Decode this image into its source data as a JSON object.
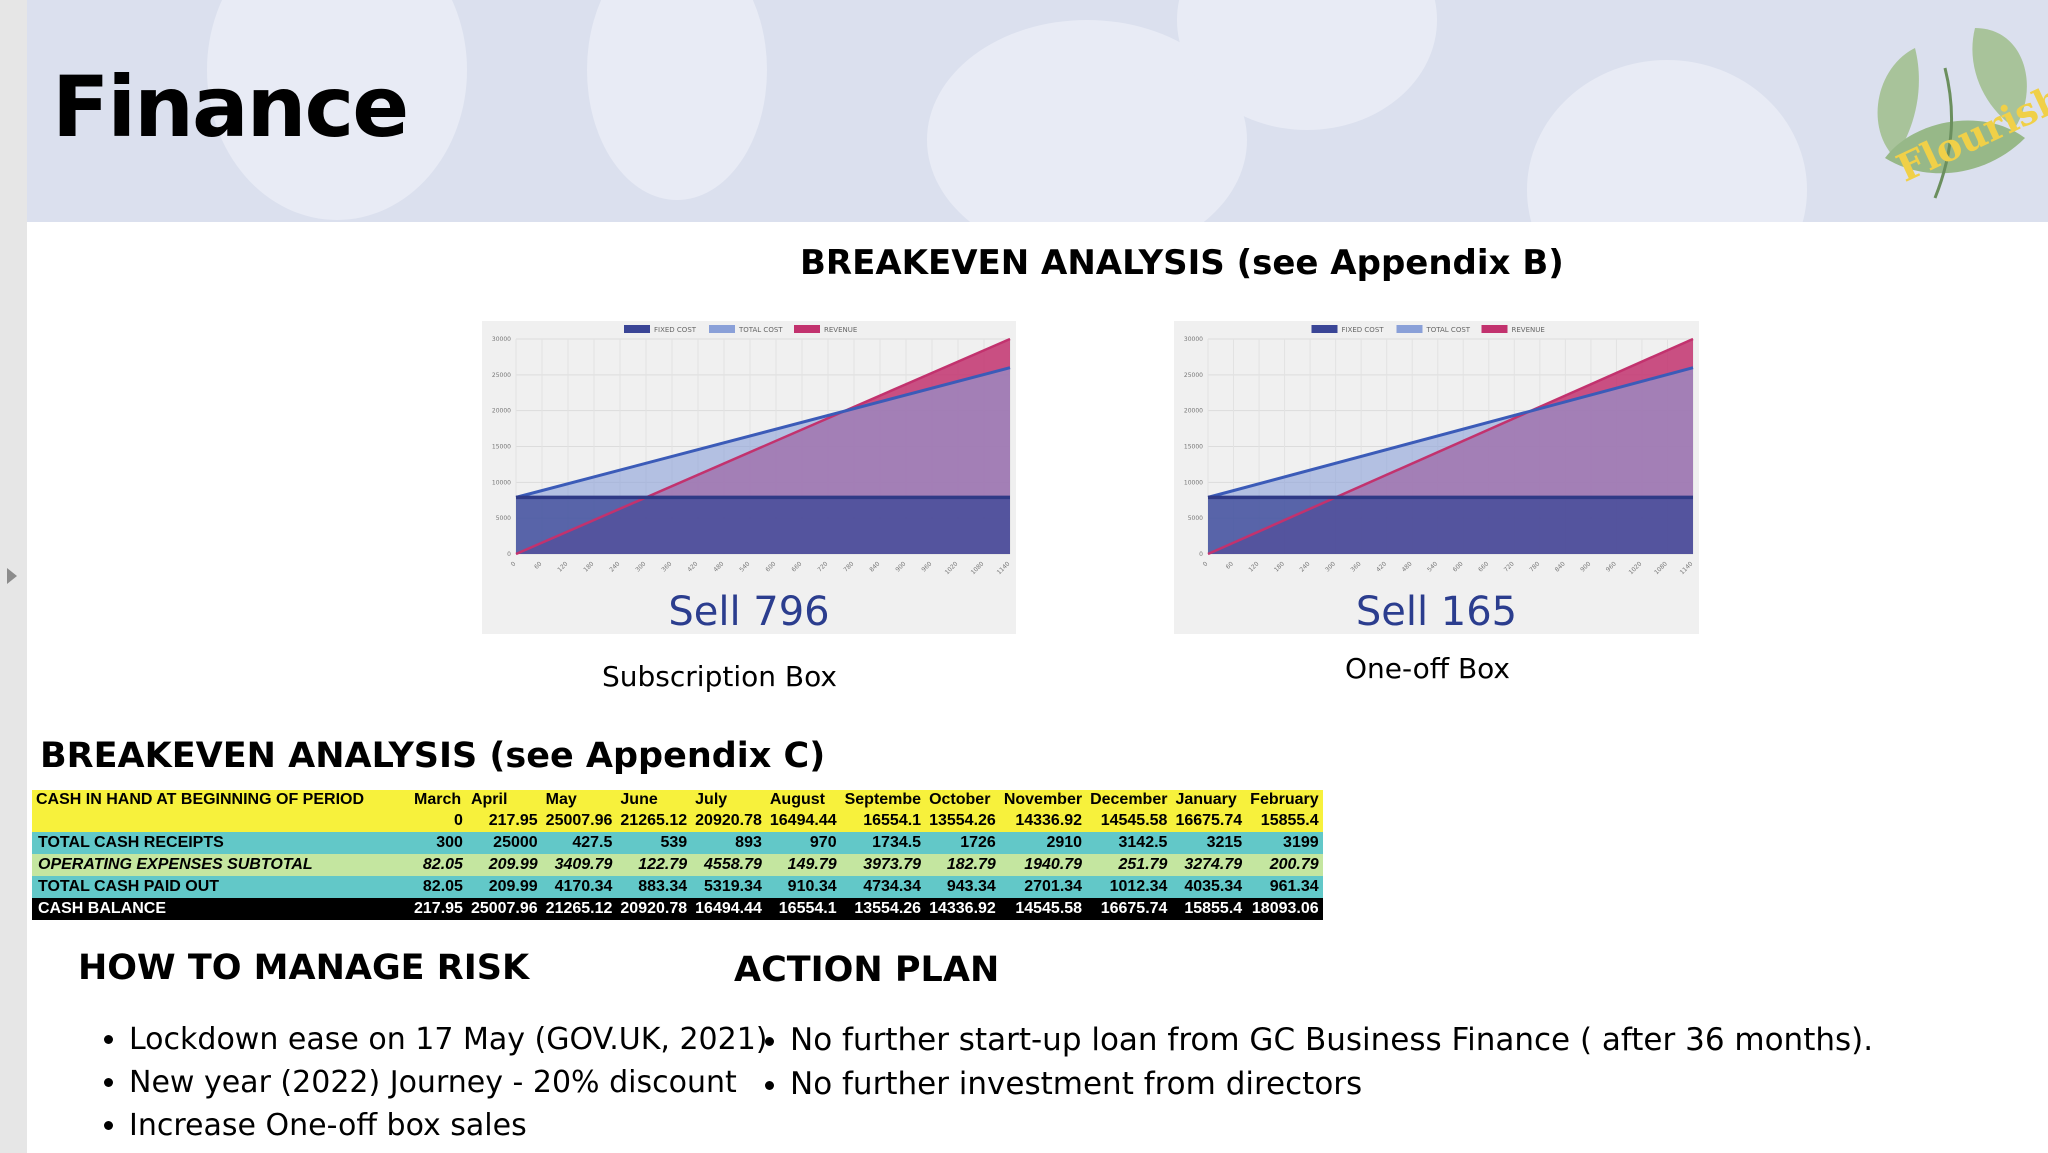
{
  "header": {
    "title": "Finance",
    "logo_text": "Flourish"
  },
  "breakeven_b": {
    "heading": "BREAKEVEN ANALYSIS (see Appendix B)",
    "legend": [
      "FIXED COST",
      "TOTAL COST",
      "REVENUE"
    ],
    "colors": {
      "fixed_cost": "#3a4596",
      "total_cost": "#8aa0d8",
      "revenue": "#c2326e"
    },
    "charts": [
      {
        "sell_label": "Sell 796",
        "caption": "Subscription Box"
      },
      {
        "sell_label": "Sell 165",
        "caption": "One-off Box"
      }
    ]
  },
  "chart_data": [
    {
      "type": "area",
      "title": "",
      "legend": [
        "FIXED COST",
        "TOTAL COST",
        "REVENUE"
      ],
      "x_ticks": [
        "0",
        "60",
        "120",
        "180",
        "240",
        "300",
        "360",
        "420",
        "480",
        "540",
        "600",
        "660",
        "720",
        "780",
        "840",
        "900",
        "960",
        "1020",
        "1080",
        "1140"
      ],
      "y_ticks": [
        "0",
        "5000",
        "10000",
        "15000",
        "20000",
        "25000",
        "30000"
      ],
      "ylim": [
        0,
        30000
      ],
      "xlim": [
        0,
        1140
      ],
      "series": [
        {
          "name": "FIXED COST",
          "x": [
            0,
            1140
          ],
          "values": [
            7900,
            7900
          ]
        },
        {
          "name": "TOTAL COST",
          "x": [
            0,
            1140
          ],
          "values": [
            7900,
            26000
          ]
        },
        {
          "name": "REVENUE",
          "x": [
            0,
            1140
          ],
          "values": [
            0,
            30000
          ]
        }
      ]
    },
    {
      "type": "area",
      "title": "",
      "legend": [
        "FIXED COST",
        "TOTAL COST",
        "REVENUE"
      ],
      "x_ticks": [
        "0",
        "60",
        "120",
        "180",
        "240",
        "300",
        "360",
        "420",
        "480",
        "540",
        "600",
        "660",
        "720",
        "780",
        "840",
        "900",
        "960",
        "1020",
        "1080",
        "1140"
      ],
      "y_ticks": [
        "0",
        "5000",
        "10000",
        "15000",
        "20000",
        "25000",
        "30000"
      ],
      "ylim": [
        0,
        30000
      ],
      "xlim": [
        0,
        1140
      ],
      "series": [
        {
          "name": "FIXED COST",
          "x": [
            0,
            1140
          ],
          "values": [
            7900,
            7900
          ]
        },
        {
          "name": "TOTAL COST",
          "x": [
            0,
            1140
          ],
          "values": [
            7900,
            26000
          ]
        },
        {
          "name": "REVENUE",
          "x": [
            0,
            1140
          ],
          "values": [
            0,
            30000
          ]
        }
      ]
    }
  ],
  "breakeven_c": {
    "heading": "BREAKEVEN ANALYSIS (see Appendix C)",
    "header_label": "CASH IN HAND AT BEGINNING OF PERIOD",
    "months": [
      "March",
      "April",
      "May",
      "June",
      "July",
      "August",
      "Septembe",
      "October",
      "November",
      "December",
      "January",
      "February"
    ],
    "rows": [
      {
        "label": "",
        "style": "yellow",
        "values": [
          "0",
          "217.95",
          "25007.96",
          "21265.12",
          "20920.78",
          "16494.44",
          "16554.1",
          "13554.26",
          "14336.92",
          "14545.58",
          "16675.74",
          "15855.4"
        ]
      },
      {
        "label": "TOTAL CASH RECEIPTS",
        "style": "cyan",
        "values": [
          "300",
          "25000",
          "427.5",
          "539",
          "893",
          "970",
          "1734.5",
          "1726",
          "2910",
          "3142.5",
          "3215",
          "3199"
        ]
      },
      {
        "label": "OPERATING EXPENSES SUBTOTAL",
        "style": "green",
        "values": [
          "82.05",
          "209.99",
          "3409.79",
          "122.79",
          "4558.79",
          "149.79",
          "3973.79",
          "182.79",
          "1940.79",
          "251.79",
          "3274.79",
          "200.79"
        ]
      },
      {
        "label": "TOTAL CASH PAID OUT",
        "style": "cyan",
        "values": [
          "82.05",
          "209.99",
          "4170.34",
          "883.34",
          "5319.34",
          "910.34",
          "4734.34",
          "943.34",
          "2701.34",
          "1012.34",
          "4035.34",
          "961.34"
        ]
      },
      {
        "label": "CASH BALANCE",
        "style": "black",
        "values": [
          "217.95",
          "25007.96",
          "21265.12",
          "20920.78",
          "16494.44",
          "16554.1",
          "13554.26",
          "14336.92",
          "14545.58",
          "16675.74",
          "15855.4",
          "18093.06"
        ]
      }
    ]
  },
  "risk": {
    "heading": "HOW TO MANAGE RISK",
    "items": [
      "Lockdown ease on 17 May (GOV.UK, 2021)",
      "New year (2022) Journey - 20% discount",
      "Increase One-off box sales"
    ]
  },
  "action": {
    "heading": "ACTION PLAN",
    "items": [
      "No further start-up loan from GC Business Finance  ( after 36 months).",
      "No further investment from directors"
    ]
  }
}
